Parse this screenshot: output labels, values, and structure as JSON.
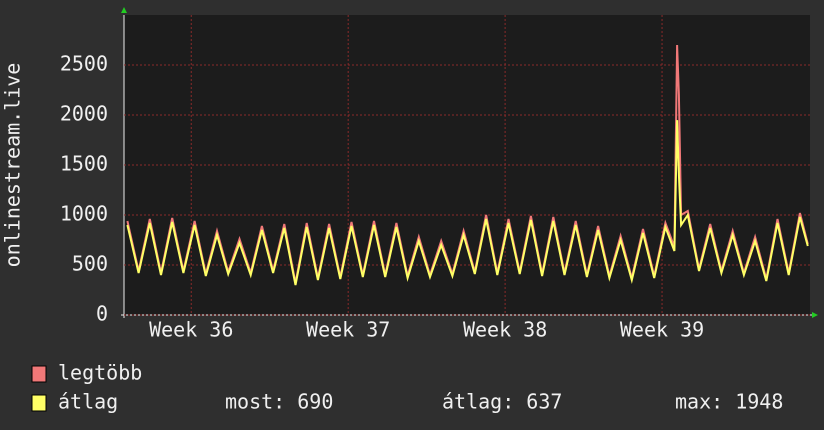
{
  "chart_data": {
    "type": "line",
    "y_label": "onlinestream.live",
    "x": [
      0.15,
      0.65,
      1.15,
      1.65,
      2.15,
      2.65,
      3.15,
      3.65,
      4.15,
      4.65,
      5.15,
      5.65,
      6.15,
      6.65,
      7.15,
      7.65,
      8.15,
      8.65,
      9.15,
      9.65,
      10.15,
      10.65,
      11.15,
      11.65,
      12.15,
      12.65,
      13.15,
      13.65,
      14.15,
      14.65,
      15.15,
      15.65,
      16.15,
      16.65,
      17.15,
      17.65,
      18.15,
      18.65,
      19.15,
      19.65,
      20.15,
      20.65,
      21.15,
      21.65,
      22.15,
      22.65,
      23.15,
      23.65,
      24.15,
      24.55,
      24.67,
      24.75,
      24.85,
      25.15,
      25.65,
      26.15,
      26.65,
      27.15,
      27.65,
      28.15,
      28.65,
      29.15,
      29.65,
      30.15,
      30.5
    ],
    "series": [
      {
        "name": "legtöbb",
        "color": "#f07878",
        "values": [
          940,
          440,
          960,
          420,
          970,
          440,
          940,
          410,
          840,
          430,
          760,
          420,
          890,
          440,
          910,
          320,
          920,
          370,
          910,
          380,
          930,
          400,
          940,
          400,
          920,
          390,
          780,
          400,
          740,
          410,
          840,
          430,
          1000,
          420,
          960,
          430,
          990,
          410,
          980,
          420,
          940,
          400,
          890,
          390,
          790,
          370,
          860,
          390,
          920,
          680,
          2700,
          2200,
          1000,
          1040,
          460,
          910,
          440,
          840,
          420,
          780,
          360,
          960,
          420,
          1020,
          710
        ]
      },
      {
        "name": "átlag",
        "color": "#ffff66",
        "values": [
          900,
          420,
          920,
          400,
          930,
          420,
          900,
          390,
          800,
          410,
          720,
          400,
          850,
          420,
          870,
          300,
          880,
          350,
          870,
          360,
          890,
          380,
          900,
          380,
          880,
          370,
          740,
          380,
          700,
          390,
          800,
          410,
          960,
          400,
          920,
          410,
          950,
          390,
          940,
          400,
          900,
          380,
          850,
          370,
          750,
          350,
          820,
          370,
          880,
          640,
          1948,
          1400,
          900,
          1000,
          440,
          870,
          420,
          800,
          400,
          740,
          340,
          920,
          400,
          980,
          690
        ]
      }
    ],
    "legend_stats": [
      "most: 690",
      "átlag: 637",
      "max: 1948"
    ],
    "xlim": [
      0,
      30.6
    ],
    "xticks": [
      {
        "value": 3,
        "label": "Week 36"
      },
      {
        "value": 10,
        "label": "Week 37"
      },
      {
        "value": 17,
        "label": "Week 38"
      },
      {
        "value": 24,
        "label": "Week 39"
      }
    ],
    "ylim": [
      0,
      3000
    ],
    "yticks": [
      0,
      500,
      1000,
      1500,
      2000,
      2500
    ],
    "grid": true
  }
}
